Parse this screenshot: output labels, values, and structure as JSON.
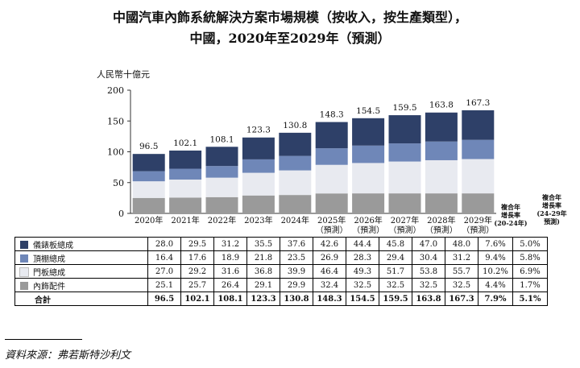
{
  "title_line1": "中國汽車內飾系統解決方案市場規模（按收入，按生產類型），",
  "title_line2": "中國，2020年至2029年（預測）",
  "unit_label": "人民幣十億元",
  "cagr_header_1": [
    "複合年",
    "增長率",
    "(20-24年)"
  ],
  "cagr_header_2": [
    "複合年",
    "增長率",
    "(24-29年",
    "預測)"
  ],
  "source": "資料來源：弗若斯特沙利文",
  "colors": {
    "instrument": "#2e4068",
    "headliner": "#6f87b8",
    "door": "#e8eaf0",
    "parts": "#9a9a9a"
  },
  "chart_data": {
    "type": "bar",
    "stacked": true,
    "categories": [
      "2020年",
      "2021年",
      "2022年",
      "2023年",
      "2024年",
      "2025年",
      "2026年",
      "2027年",
      "2028年",
      "2029年"
    ],
    "category_sublabels": [
      "",
      "",
      "",
      "",
      "",
      "（預測）",
      "（預測）",
      "（預測）",
      "（預測）",
      "（預測）"
    ],
    "ylabel": "人民幣十億元",
    "ylim": [
      0,
      200
    ],
    "yticks": [
      0,
      50,
      100,
      150,
      200
    ],
    "grid": false,
    "series": [
      {
        "name": "內飾配件",
        "values": [
          25.1,
          25.7,
          26.4,
          29.1,
          29.9,
          32.4,
          32.5,
          32.5,
          32.5,
          32.5
        ],
        "cagr_2020_2024": "4.4%",
        "cagr_2024_2029": "1.7%"
      },
      {
        "name": "門板總成",
        "values": [
          27.0,
          29.2,
          31.6,
          36.8,
          39.9,
          46.4,
          49.3,
          51.7,
          53.8,
          55.7
        ],
        "cagr_2020_2024": "10.2%",
        "cagr_2024_2029": "6.9%"
      },
      {
        "name": "頂棚總成",
        "values": [
          16.4,
          17.6,
          18.9,
          21.8,
          23.5,
          26.9,
          28.3,
          29.4,
          30.4,
          31.2
        ],
        "cagr_2020_2024": "9.4%",
        "cagr_2024_2029": "5.8%"
      },
      {
        "name": "儀錶板總成",
        "values": [
          28.0,
          29.5,
          31.2,
          35.5,
          37.6,
          42.6,
          44.4,
          45.8,
          47.0,
          48.0
        ],
        "cagr_2020_2024": "7.6%",
        "cagr_2024_2029": "5.0%"
      }
    ],
    "totals": {
      "name": "合計",
      "values": [
        96.5,
        102.1,
        108.1,
        123.3,
        130.8,
        148.3,
        154.5,
        159.5,
        163.8,
        167.3
      ],
      "labels": [
        "96.5",
        "102.1",
        "108.1",
        "123.3",
        "130.8",
        "148.3",
        "154.5",
        "159.5",
        "163.8",
        "167.3"
      ],
      "cagr_2020_2024": "7.9%",
      "cagr_2024_2029": "5.1%"
    },
    "table_rows": [
      {
        "name": "儀錶板總成",
        "color_key": "instrument",
        "cells": [
          "28.0",
          "29.5",
          "31.2",
          "35.5",
          "37.6",
          "42.6",
          "44.4",
          "45.8",
          "47.0",
          "48.0"
        ],
        "cagr1": "7.6%",
        "cagr2": "5.0%"
      },
      {
        "name": "頂棚總成",
        "color_key": "headliner",
        "cells": [
          "16.4",
          "17.6",
          "18.9",
          "21.8",
          "23.5",
          "26.9",
          "28.3",
          "29.4",
          "30.4",
          "31.2"
        ],
        "cagr1": "9.4%",
        "cagr2": "5.8%"
      },
      {
        "name": "門板總成",
        "color_key": "door",
        "cells": [
          "27.0",
          "29.2",
          "31.6",
          "36.8",
          "39.9",
          "46.4",
          "49.3",
          "51.7",
          "53.8",
          "55.7"
        ],
        "cagr1": "10.2%",
        "cagr2": "6.9%"
      },
      {
        "name": "內飾配件",
        "color_key": "parts",
        "cells": [
          "25.1",
          "25.7",
          "26.4",
          "29.1",
          "29.9",
          "32.4",
          "32.5",
          "32.5",
          "32.5",
          "32.5"
        ],
        "cagr1": "4.4%",
        "cagr2": "1.7%"
      },
      {
        "name": "合計",
        "color_key": "",
        "cells": [
          "96.5",
          "102.1",
          "108.1",
          "123.3",
          "130.8",
          "148.3",
          "154.5",
          "159.5",
          "163.8",
          "167.3"
        ],
        "cagr1": "7.9%",
        "cagr2": "5.1%"
      }
    ]
  }
}
